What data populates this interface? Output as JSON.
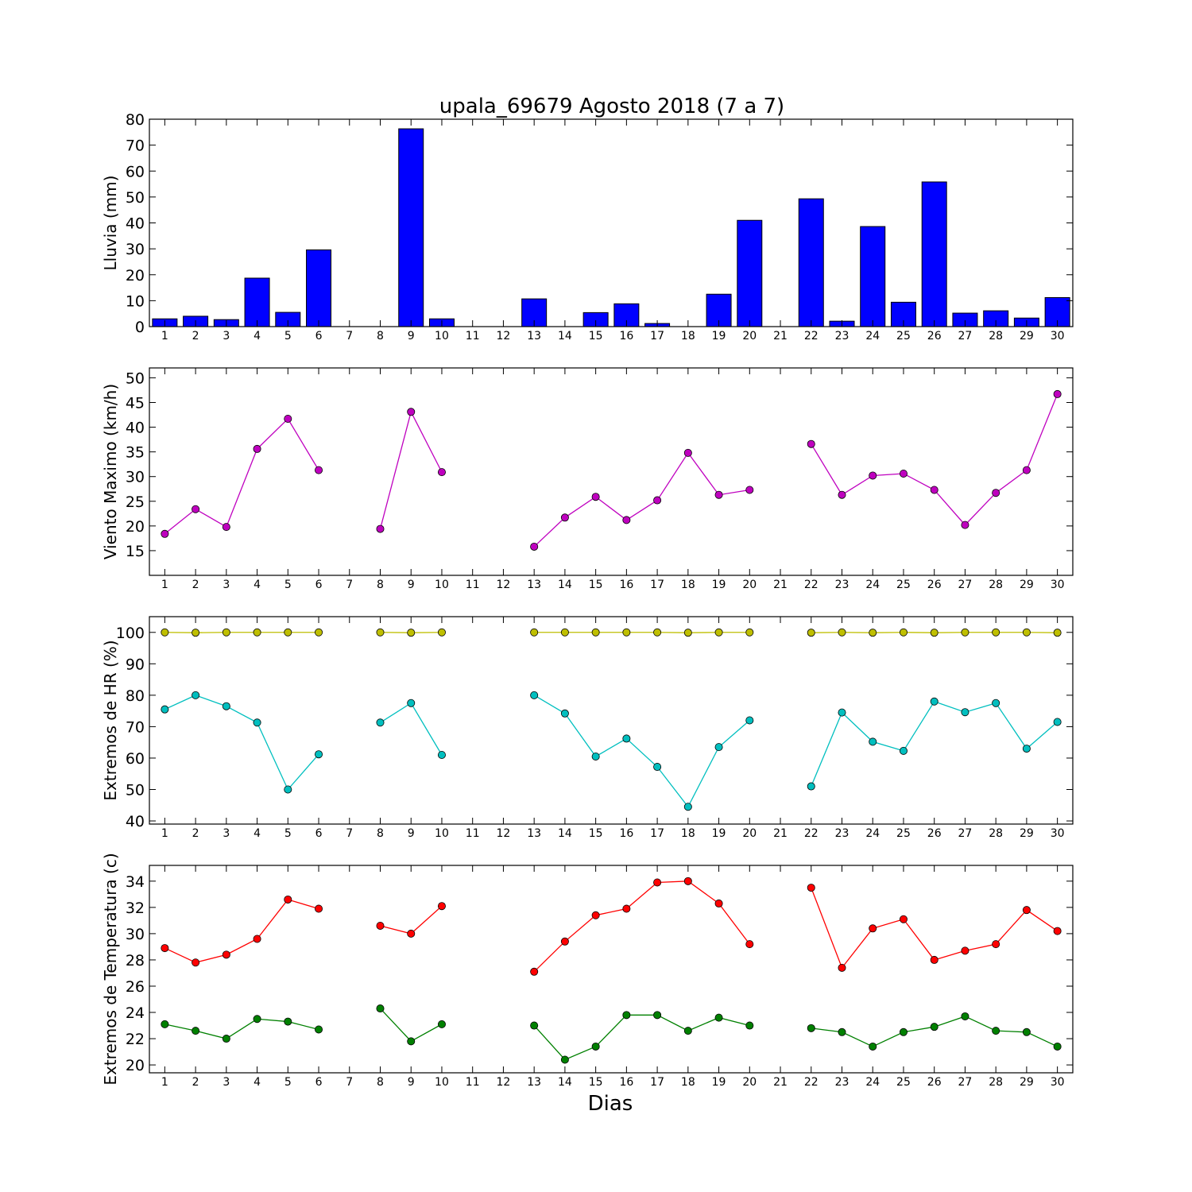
{
  "chart_data": {
    "title": "upala_69679 Agosto 2018  (7 a 7)",
    "xlabel": "Dias",
    "x": [
      1,
      2,
      3,
      4,
      5,
      6,
      7,
      8,
      9,
      10,
      11,
      12,
      13,
      14,
      15,
      16,
      17,
      18,
      19,
      20,
      21,
      22,
      23,
      24,
      25,
      26,
      27,
      28,
      29,
      30
    ],
    "panels": [
      {
        "type": "bar",
        "ylabel": "Lluvia (mm)",
        "ylim": [
          0,
          80
        ],
        "yticks": [
          0,
          10,
          20,
          30,
          40,
          50,
          60,
          70,
          80
        ],
        "colors": {
          "bar": "#0000ff"
        },
        "series": [
          {
            "values": [
              3,
              4,
              2.7,
              18.7,
              5.5,
              29.6,
              0,
              0,
              76.3,
              3,
              0,
              0,
              10.7,
              0,
              5.4,
              8.8,
              1.2,
              0,
              12.5,
              41,
              0,
              49.3,
              2.1,
              38.6,
              9.4,
              55.8,
              5.2,
              6.1,
              3.3,
              11.2
            ]
          }
        ]
      },
      {
        "type": "line",
        "ylabel": "Viento Maximo (km/h)",
        "ylim": [
          10,
          52
        ],
        "yticks": [
          15,
          20,
          25,
          30,
          35,
          40,
          45,
          50
        ],
        "series": [
          {
            "color": "#bf00bf",
            "values": [
              18.4,
              23.4,
              19.8,
              35.6,
              41.7,
              31.3,
              null,
              19.4,
              43.1,
              30.9,
              null,
              null,
              15.8,
              21.7,
              25.9,
              21.2,
              25.2,
              34.8,
              26.3,
              27.3,
              null,
              36.6,
              26.3,
              30.2,
              30.6,
              27.3,
              20.2,
              26.7,
              31.3,
              46.7
            ]
          }
        ]
      },
      {
        "type": "line",
        "ylabel": "Extremos de HR (%)",
        "ylim": [
          39,
          105
        ],
        "yticks": [
          40,
          50,
          60,
          70,
          80,
          90,
          100
        ],
        "series": [
          {
            "color": "#bfbf00",
            "values": [
              100,
              99.9,
              100,
              100,
              100,
              100,
              null,
              100,
              99.9,
              100,
              null,
              null,
              100,
              100,
              100,
              100,
              100,
              99.9,
              100,
              100,
              null,
              99.9,
              100,
              99.9,
              100,
              99.9,
              100,
              100,
              100,
              99.9
            ]
          },
          {
            "color": "#00bfbf",
            "values": [
              75.5,
              80,
              76.5,
              71.3,
              50,
              61.2,
              null,
              71.3,
              77.5,
              61,
              null,
              null,
              80,
              74.2,
              60.5,
              66.2,
              57.2,
              44.5,
              63.5,
              72,
              null,
              51,
              74.5,
              65.2,
              62.3,
              78,
              74.6,
              77.5,
              63,
              71.5
            ]
          }
        ]
      },
      {
        "type": "line",
        "ylabel": "Extremos de Temperatura (c)",
        "ylim": [
          19.4,
          35.2
        ],
        "yticks": [
          20,
          22,
          24,
          26,
          28,
          30,
          32,
          34
        ],
        "series": [
          {
            "color": "#ff0000",
            "values": [
              28.9,
              27.8,
              28.4,
              29.6,
              32.6,
              31.9,
              null,
              30.6,
              30,
              32.1,
              null,
              null,
              27.1,
              29.4,
              31.4,
              31.9,
              33.9,
              34,
              32.3,
              29.2,
              null,
              33.5,
              27.4,
              30.4,
              31.1,
              28,
              28.7,
              29.2,
              31.8,
              30.2
            ]
          },
          {
            "color": "#008000",
            "values": [
              23.1,
              22.6,
              22,
              23.5,
              23.3,
              22.7,
              null,
              24.3,
              21.8,
              23.1,
              null,
              null,
              23,
              20.4,
              21.4,
              23.8,
              23.8,
              22.6,
              23.6,
              23,
              null,
              22.8,
              22.5,
              21.4,
              22.5,
              22.9,
              23.7,
              22.6,
              22.5,
              21.4
            ]
          }
        ]
      }
    ]
  }
}
